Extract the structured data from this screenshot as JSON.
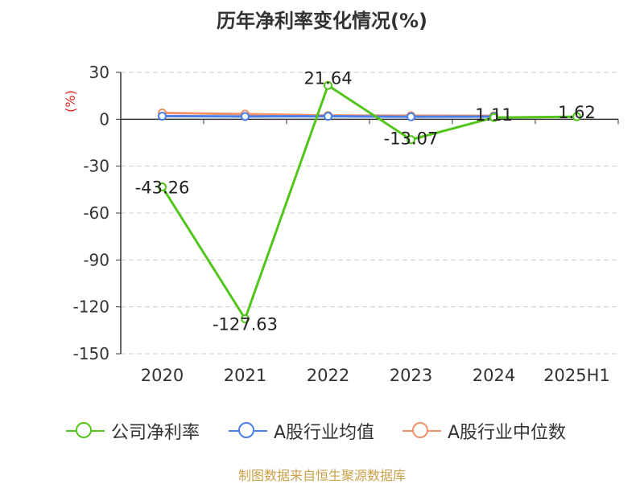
{
  "title": "历年净利率变化情况(%)",
  "source": "制图数据来自恒生聚源数据库",
  "chart_data": {
    "type": "line",
    "title": "历年净利率变化情况(%)",
    "ylabel": "(%)",
    "xlabel": "",
    "categories": [
      "2020",
      "2021",
      "2022",
      "2023",
      "2024",
      "2025H1"
    ],
    "ylim": [
      -150,
      30
    ],
    "yticks": [
      30,
      0,
      -30,
      -60,
      -90,
      -120,
      -150
    ],
    "grid": true,
    "legend_position": "bottom",
    "series": [
      {
        "name": "公司净利率",
        "color": "#52c41a",
        "values": [
          -43.26,
          -127.63,
          21.64,
          -13.07,
          1.11,
          1.62
        ],
        "labels": [
          "-43.26",
          "-127.63",
          "21.64",
          "-13.07",
          "1.11",
          "1.62"
        ]
      },
      {
        "name": "A股行业均值",
        "color": "#4a7ee8",
        "values": [
          2.0,
          1.8,
          1.9,
          1.6,
          1.7,
          null
        ]
      },
      {
        "name": "A股行业中位数",
        "color": "#f0916a",
        "values": [
          4.0,
          3.3,
          2.4,
          2.3,
          2.2,
          null
        ]
      }
    ]
  }
}
